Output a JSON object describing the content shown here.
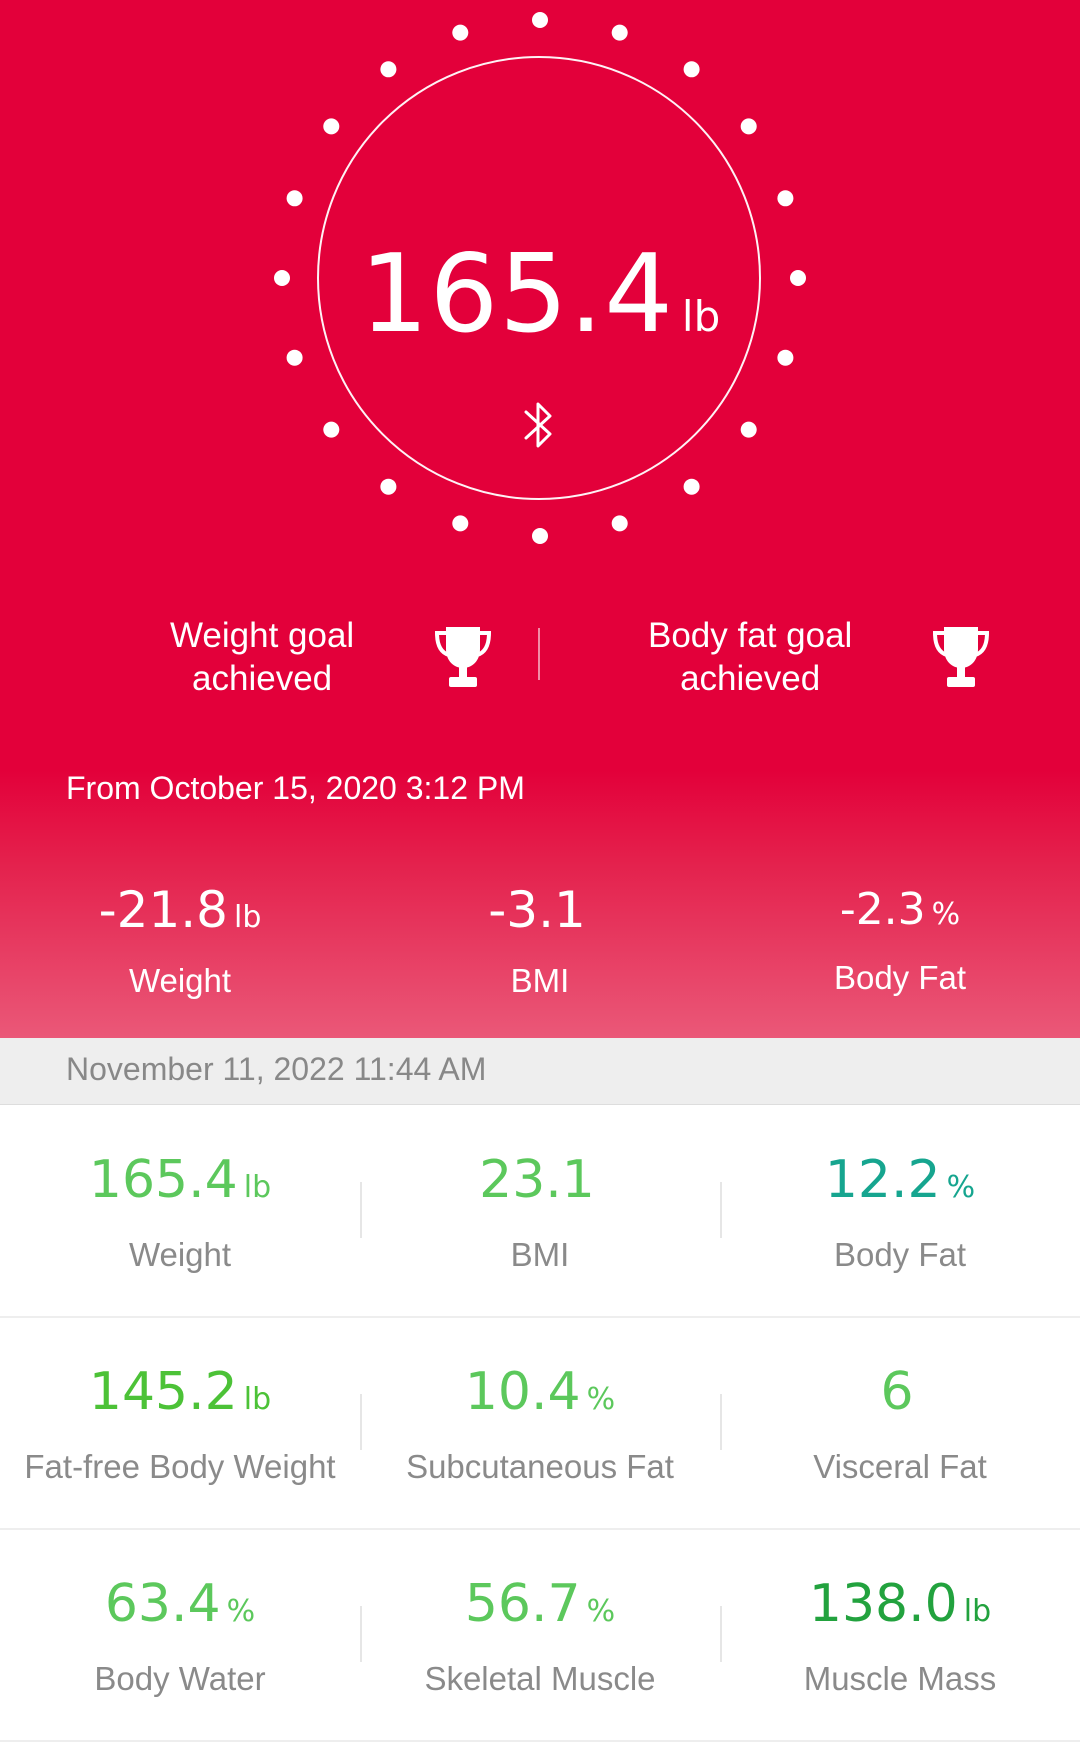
{
  "hero": {
    "weight_value": "165.4",
    "weight_unit": "lb",
    "status_icon": "bluetooth-icon",
    "goals": [
      {
        "label_line1": "Weight goal",
        "label_line2": "achieved",
        "icon": "trophy-icon"
      },
      {
        "label_line1": "Body fat goal",
        "label_line2": "achieved",
        "icon": "trophy-icon"
      }
    ],
    "from_text": "From October 15, 2020 3:12 PM",
    "changes": [
      {
        "value": "-21.8",
        "unit": "lb",
        "label": "Weight"
      },
      {
        "value": "-3.1",
        "unit": "",
        "label": "BMI"
      },
      {
        "value": "-2.3",
        "unit": "%",
        "label": "Body Fat"
      }
    ]
  },
  "record": {
    "date": "November 11, 2022 11:44 AM",
    "metrics": [
      {
        "value": "165.4",
        "unit": "lb",
        "label": "Weight",
        "color": "#5cc85c"
      },
      {
        "value": "23.1",
        "unit": "",
        "label": "BMI",
        "color": "#5cc85c"
      },
      {
        "value": "12.2",
        "unit": "%",
        "label": "Body Fat",
        "color": "#16a58f"
      },
      {
        "value": "145.2",
        "unit": "lb",
        "label": "Fat-free Body Weight",
        "color": "#4cc237"
      },
      {
        "value": "10.4",
        "unit": "%",
        "label": "Subcutaneous Fat",
        "color": "#5cc85c"
      },
      {
        "value": "6",
        "unit": "",
        "label": "Visceral Fat",
        "color": "#5cc85c"
      },
      {
        "value": "63.4",
        "unit": "%",
        "label": "Body Water",
        "color": "#5cc85c"
      },
      {
        "value": "56.7",
        "unit": "%",
        "label": "Skeletal Muscle",
        "color": "#5cc85c"
      },
      {
        "value": "138.0",
        "unit": "lb",
        "label": "Muscle Mass",
        "color": "#22a23e"
      }
    ]
  },
  "colors": {
    "hero_red": "#e3003a",
    "hero_pink": "#ea5878",
    "label_gray": "#8a8a8a"
  }
}
